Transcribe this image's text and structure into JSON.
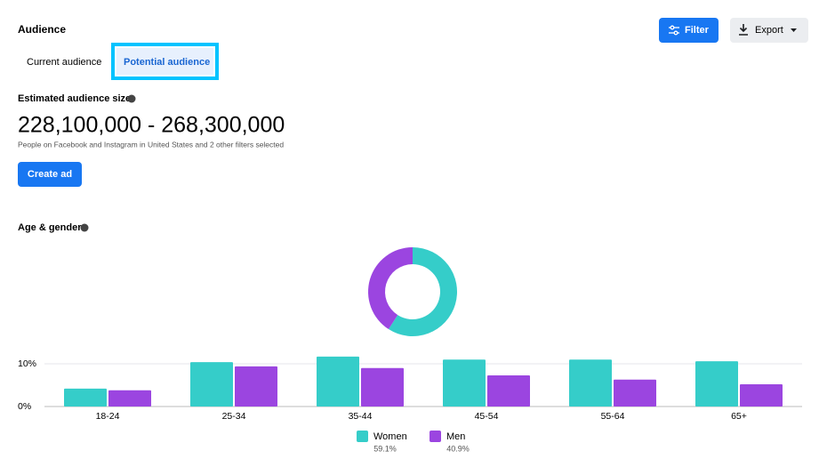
{
  "header": {
    "title": "Audience",
    "filter": "Filter",
    "export": "Export"
  },
  "tabs": [
    "Current audience",
    "Potential audience"
  ],
  "size": {
    "label": "Estimated audience size",
    "value": "228,100,000 - 268,300,000",
    "note": "People on Facebook and Instagram in United States and 2 other filters selected"
  },
  "create": "Create ad",
  "section": "Age & gender",
  "chart_data": [
    {
      "type": "bar",
      "categories": [
        "18-24",
        "25-34",
        "35-44",
        "45-54",
        "55-64",
        "65+"
      ],
      "series": [
        {
          "name": "Women",
          "color": "#35cdc9",
          "values": [
            4.2,
            10.4,
            11.7,
            11.0,
            11.0,
            10.6
          ]
        },
        {
          "name": "Men",
          "color": "#9b45e0",
          "values": [
            3.8,
            9.4,
            9.0,
            7.3,
            6.3,
            5.2
          ]
        }
      ],
      "ylim": [
        0,
        12
      ],
      "yticks": [
        {
          "value": 0,
          "label": "0%"
        },
        {
          "value": 10,
          "label": "10%"
        }
      ],
      "grid": true
    },
    {
      "type": "pie",
      "values": [
        59.1,
        40.9
      ],
      "value_labels": [
        "59.1%",
        "40.9%"
      ],
      "colors": [
        "#35cdc9",
        "#9b45e0"
      ]
    }
  ]
}
